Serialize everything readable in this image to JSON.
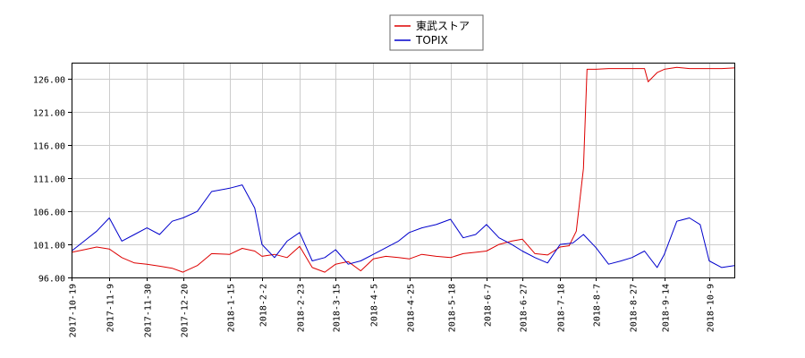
{
  "chart_data": {
    "type": "line",
    "title": "",
    "xlabel": "",
    "ylabel": "",
    "ylim": [
      96.0,
      128.5
    ],
    "y_ticks": [
      96.0,
      101.0,
      106.0,
      111.0,
      116.0,
      121.0,
      126.0
    ],
    "y_tick_labels": [
      "96.00",
      "101.00",
      "106.00",
      "111.00",
      "116.00",
      "121.00",
      "126.00"
    ],
    "x_range": [
      "2017-10-19",
      "2018-10-23"
    ],
    "x_ticks": [
      "2017-10-19",
      "2017-11-9",
      "2017-11-30",
      "2017-12-20",
      "2018-1-15",
      "2018-2-2",
      "2018-2-23",
      "2018-3-15",
      "2018-4-5",
      "2018-4-25",
      "2018-5-18",
      "2018-6-7",
      "2018-6-27",
      "2018-7-18",
      "2018-8-7",
      "2018-8-27",
      "2018-9-14",
      "2018-10-9"
    ],
    "grid": true,
    "legend_position": "top-center",
    "series": [
      {
        "name": "東武ストア",
        "color": "#dd0000",
        "x": [
          "2017-10-19",
          "2017-10-26",
          "2017-11-2",
          "2017-11-9",
          "2017-11-16",
          "2017-11-23",
          "2017-11-30",
          "2017-12-7",
          "2017-12-14",
          "2017-12-20",
          "2017-12-28",
          "2018-1-5",
          "2018-1-15",
          "2018-1-22",
          "2018-1-29",
          "2018-2-2",
          "2018-2-9",
          "2018-2-16",
          "2018-2-23",
          "2018-3-2",
          "2018-3-9",
          "2018-3-15",
          "2018-3-22",
          "2018-3-29",
          "2018-4-5",
          "2018-4-12",
          "2018-4-19",
          "2018-4-25",
          "2018-5-2",
          "2018-5-10",
          "2018-5-18",
          "2018-5-25",
          "2018-6-1",
          "2018-6-7",
          "2018-6-14",
          "2018-6-21",
          "2018-6-27",
          "2018-7-4",
          "2018-7-11",
          "2018-7-18",
          "2018-7-23",
          "2018-7-27",
          "2018-7-31",
          "2018-8-2",
          "2018-8-7",
          "2018-8-14",
          "2018-8-21",
          "2018-8-27",
          "2018-9-3",
          "2018-9-5",
          "2018-9-10",
          "2018-9-14",
          "2018-9-21",
          "2018-9-28",
          "2018-10-4",
          "2018-10-9",
          "2018-10-16",
          "2018-10-23"
        ],
        "values": [
          99.8,
          100.2,
          100.6,
          100.3,
          99.0,
          98.2,
          98.0,
          97.7,
          97.4,
          96.8,
          97.8,
          99.6,
          99.5,
          100.4,
          100.0,
          99.2,
          99.5,
          99.0,
          100.7,
          97.5,
          96.8,
          98.0,
          98.4,
          97.0,
          98.8,
          99.2,
          99.0,
          98.8,
          99.5,
          99.2,
          99.0,
          99.6,
          99.8,
          100.0,
          101.0,
          101.5,
          101.8,
          99.6,
          99.4,
          100.6,
          100.8,
          103.0,
          112.5,
          127.5,
          127.5,
          127.6,
          127.6,
          127.6,
          127.6,
          125.6,
          127.0,
          127.5,
          127.8,
          127.6,
          127.6,
          127.6,
          127.6,
          127.7
        ]
      },
      {
        "name": "TOPIX",
        "color": "#0000cc",
        "x": [
          "2017-10-19",
          "2017-10-26",
          "2017-11-2",
          "2017-11-9",
          "2017-11-16",
          "2017-11-23",
          "2017-11-30",
          "2017-12-7",
          "2017-12-14",
          "2017-12-20",
          "2017-12-28",
          "2018-1-5",
          "2018-1-15",
          "2018-1-22",
          "2018-1-29",
          "2018-2-2",
          "2018-2-9",
          "2018-2-16",
          "2018-2-23",
          "2018-3-2",
          "2018-3-9",
          "2018-3-15",
          "2018-3-22",
          "2018-3-29",
          "2018-4-5",
          "2018-4-12",
          "2018-4-19",
          "2018-4-25",
          "2018-5-2",
          "2018-5-10",
          "2018-5-18",
          "2018-5-25",
          "2018-6-1",
          "2018-6-7",
          "2018-6-14",
          "2018-6-21",
          "2018-6-27",
          "2018-7-4",
          "2018-7-11",
          "2018-7-18",
          "2018-7-25",
          "2018-7-31",
          "2018-8-7",
          "2018-8-14",
          "2018-8-21",
          "2018-8-27",
          "2018-9-3",
          "2018-9-10",
          "2018-9-14",
          "2018-9-21",
          "2018-9-28",
          "2018-10-4",
          "2018-10-9",
          "2018-10-16",
          "2018-10-23"
        ],
        "values": [
          100.0,
          101.5,
          103.0,
          105.0,
          101.5,
          102.5,
          103.5,
          102.5,
          104.5,
          105.0,
          106.0,
          109.0,
          109.5,
          110.0,
          106.5,
          101.0,
          99.0,
          101.5,
          102.8,
          98.5,
          99.0,
          100.2,
          98.0,
          98.5,
          99.5,
          100.5,
          101.5,
          102.8,
          103.5,
          104.0,
          104.8,
          102.0,
          102.5,
          104.0,
          102.0,
          101.0,
          100.0,
          99.0,
          98.2,
          101.0,
          101.2,
          102.5,
          100.5,
          98.0,
          98.5,
          99.0,
          100.0,
          97.5,
          99.5,
          104.5,
          105.0,
          104.0,
          98.5,
          97.5,
          97.8
        ]
      }
    ]
  }
}
